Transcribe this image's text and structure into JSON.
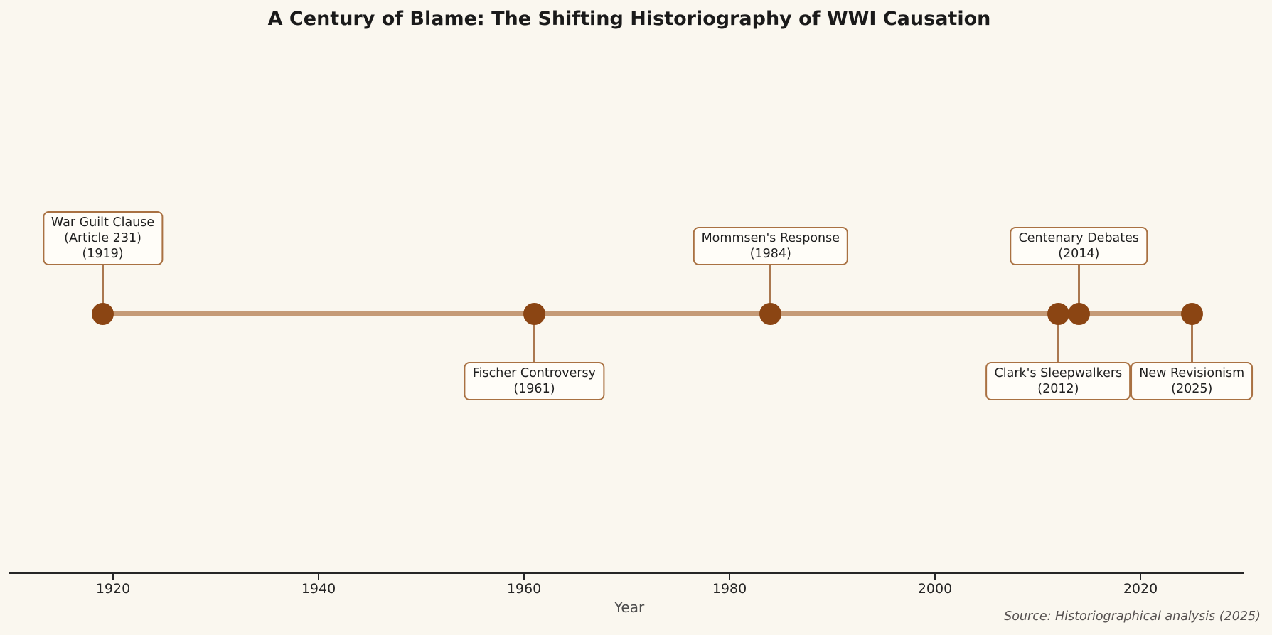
{
  "chart_data": {
    "type": "timeline",
    "title": "A Century of Blame: The Shifting Historiography of WWI Causation",
    "xlabel": "Year",
    "source_note": "Source: Historiographical analysis (2025)",
    "grid": false,
    "legend": "none",
    "xlim": [
      1909.8,
      2030.1
    ],
    "x_ticks": [
      "1920",
      "1940",
      "1960",
      "1980",
      "2000",
      "2020"
    ],
    "x_tick_values": [
      1920,
      1940,
      1960,
      1980,
      2000,
      2020
    ],
    "events": [
      {
        "year": 1919,
        "side": "above",
        "lines": [
          "War Guilt Clause",
          "(Article 231)",
          "(1919)"
        ]
      },
      {
        "year": 1961,
        "side": "below",
        "lines": [
          "Fischer Controversy",
          "(1961)"
        ]
      },
      {
        "year": 1984,
        "side": "above",
        "lines": [
          "Mommsen's Response",
          "(1984)"
        ]
      },
      {
        "year": 2012,
        "side": "below",
        "lines": [
          "Clark's Sleepwalkers",
          "(2012)"
        ]
      },
      {
        "year": 2014,
        "side": "above",
        "lines": [
          "Centenary Debates",
          "(2014)"
        ]
      },
      {
        "year": 2025,
        "side": "below",
        "lines": [
          "New Revisionism",
          "(2025)"
        ]
      }
    ],
    "colors": {
      "background": "#FAF7EF",
      "dot": "#8B4513",
      "timeline": "#C59B77",
      "connector": "#AA7850",
      "box_border": "#A97142",
      "box_fill": "#FFFDF8",
      "axis": "#262626",
      "title_text": "#1a1a1a",
      "muted_text": "#565150"
    }
  }
}
